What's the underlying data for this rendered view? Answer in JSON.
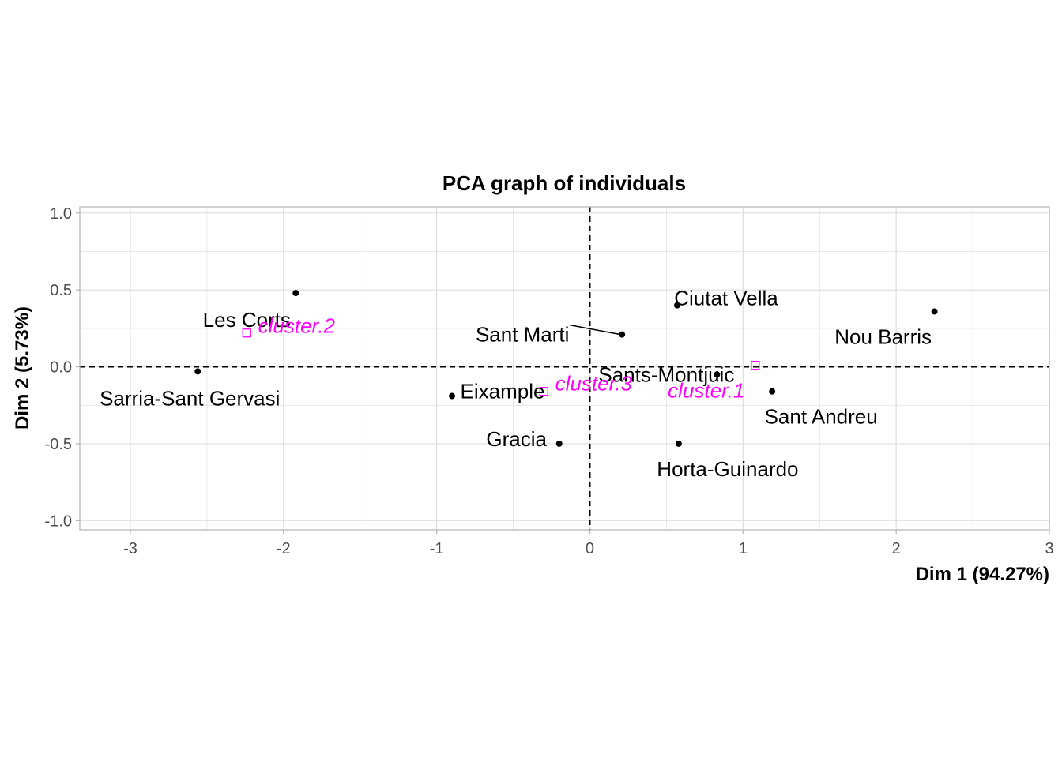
{
  "chart_data": {
    "type": "scatter",
    "title": "PCA graph of individuals",
    "xlabel": "Dim 1 (94.27%)",
    "ylabel": "Dim 2 (5.73%)",
    "xlim": [
      -3.33,
      3.0
    ],
    "ylim": [
      -1.06,
      1.04
    ],
    "xticks": [
      -3,
      -2,
      -1,
      0,
      1,
      2,
      3
    ],
    "xtick_labels": [
      "-3",
      "-2",
      "-1",
      "0",
      "1",
      "2",
      "3"
    ],
    "yticks": [
      -1.0,
      -0.5,
      0.0,
      0.5,
      1.0
    ],
    "ytick_labels": [
      "-1.0",
      "-0.5",
      "0.0",
      "0.5",
      "1.0"
    ],
    "grid": true,
    "reference_lines": {
      "x": 0,
      "y": 0,
      "style": "dashed"
    },
    "individuals": [
      {
        "label": "Les Corts",
        "x": -1.92,
        "y": 0.48
      },
      {
        "label": "Sarria-Sant Gervasi",
        "x": -2.56,
        "y": -0.03
      },
      {
        "label": "Eixample",
        "x": -0.9,
        "y": -0.19
      },
      {
        "label": "Gracia",
        "x": -0.2,
        "y": -0.5
      },
      {
        "label": "Sant Marti",
        "x": 0.21,
        "y": 0.21
      },
      {
        "label": "Ciutat Vella",
        "x": 0.57,
        "y": 0.4
      },
      {
        "label": "Sants-Montjuic",
        "x": 0.83,
        "y": -0.05
      },
      {
        "label": "Horta-Guinardo",
        "x": 0.58,
        "y": -0.5
      },
      {
        "label": "Sant Andreu",
        "x": 1.19,
        "y": -0.16
      },
      {
        "label": "Nou Barris",
        "x": 2.25,
        "y": 0.36
      }
    ],
    "clusters": [
      {
        "label": "cluster.1",
        "x": 1.08,
        "y": 0.01
      },
      {
        "label": "cluster.2",
        "x": -2.24,
        "y": 0.22
      },
      {
        "label": "cluster.3",
        "x": -0.3,
        "y": -0.16
      }
    ],
    "colors": {
      "points": "#000000",
      "clusters": "#ff00ff",
      "grid": "#dedede",
      "panel_border": "#b3b3b3",
      "tick_text": "#4d4d4d"
    }
  }
}
